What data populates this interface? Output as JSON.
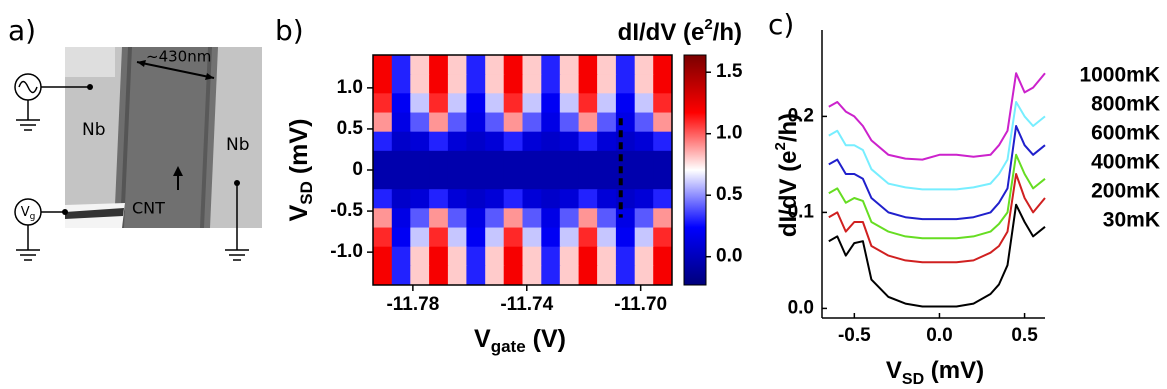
{
  "panel_a": {
    "label": "a)",
    "scale": "~430nm",
    "left_contact": "Nb",
    "right_contact": "Nb",
    "tube": "CNT",
    "gate_source": [
      "V",
      "g"
    ]
  },
  "chart_data": [
    {
      "type": "heatmap",
      "panel_label": "b)",
      "colorbar_label": [
        "dI/dV (e",
        "2",
        "/h)"
      ],
      "xlabel": [
        "V",
        "gate",
        "  (V)"
      ],
      "ylabel": [
        "V",
        "SD",
        " (mV)"
      ],
      "x": [
        -11.7907,
        -11.7841,
        -11.7776,
        -11.771,
        -11.7644,
        -11.7579,
        -11.7513,
        -11.7448,
        -11.7382,
        -11.7316,
        -11.7251,
        -11.7185,
        -11.712,
        -11.7054,
        -11.6988,
        -11.6923
      ],
      "y": [
        1.283,
        1.05,
        0.817,
        0.583,
        0.35,
        0.117,
        -0.117,
        -0.35,
        -0.583,
        -0.817,
        -1.05,
        -1.283
      ],
      "z": [
        [
          1.2,
          0.3,
          0.8,
          1.2,
          0.8,
          0.3,
          0.8,
          1.2,
          0.8,
          0.3,
          0.8,
          1.2,
          0.8,
          0.3,
          0.8,
          1.2
        ],
        [
          1.2,
          0.3,
          0.8,
          1.2,
          0.8,
          0.3,
          0.8,
          1.2,
          0.8,
          0.3,
          0.8,
          1.2,
          0.8,
          0.3,
          0.8,
          1.2
        ],
        [
          1.1,
          0.2,
          0.6,
          1.1,
          0.6,
          0.2,
          0.6,
          1.1,
          0.6,
          0.2,
          0.6,
          1.1,
          0.6,
          0.2,
          0.6,
          1.1
        ],
        [
          0.9,
          0.15,
          0.4,
          0.9,
          0.4,
          0.15,
          0.4,
          0.9,
          0.4,
          0.15,
          0.4,
          0.9,
          0.4,
          0.15,
          0.4,
          0.9
        ],
        [
          0.3,
          0.05,
          0.1,
          0.3,
          0.1,
          0.05,
          0.1,
          0.3,
          0.1,
          0.05,
          0.1,
          0.3,
          0.1,
          0.05,
          0.1,
          0.3
        ],
        [
          -0.05,
          -0.05,
          -0.05,
          -0.05,
          -0.05,
          -0.05,
          -0.05,
          -0.05,
          -0.05,
          -0.05,
          -0.05,
          -0.05,
          -0.05,
          -0.05,
          -0.05,
          -0.05
        ],
        [
          -0.05,
          -0.05,
          -0.05,
          -0.05,
          -0.05,
          -0.05,
          -0.05,
          -0.05,
          -0.05,
          -0.05,
          -0.05,
          -0.05,
          -0.05,
          -0.05,
          -0.05,
          -0.05
        ],
        [
          0.3,
          0.05,
          0.1,
          0.3,
          0.1,
          0.05,
          0.1,
          0.3,
          0.1,
          0.05,
          0.1,
          0.3,
          0.1,
          0.05,
          0.1,
          0.3
        ],
        [
          0.9,
          0.15,
          0.4,
          0.9,
          0.4,
          0.15,
          0.4,
          0.9,
          0.4,
          0.15,
          0.4,
          0.9,
          0.4,
          0.15,
          0.4,
          0.9
        ],
        [
          1.1,
          0.2,
          0.6,
          1.1,
          0.6,
          0.2,
          0.6,
          1.1,
          0.6,
          0.2,
          0.6,
          1.1,
          0.6,
          0.2,
          0.6,
          1.1
        ],
        [
          1.2,
          0.3,
          0.8,
          1.2,
          0.8,
          0.3,
          0.8,
          1.2,
          0.8,
          0.3,
          0.8,
          1.2,
          0.8,
          0.3,
          0.8,
          1.2
        ],
        [
          1.2,
          0.3,
          0.8,
          1.2,
          0.8,
          0.3,
          0.8,
          1.2,
          0.8,
          0.3,
          0.8,
          1.2,
          0.8,
          0.3,
          0.8,
          1.2
        ]
      ],
      "xlim": [
        -11.794,
        -11.689
      ],
      "ylim": [
        -1.4,
        1.4
      ],
      "xticks": [
        {
          "value": -11.78,
          "label": "-11.78"
        },
        {
          "value": -11.74,
          "label": "-11.74"
        },
        {
          "value": -11.7,
          "label": "-11.70"
        }
      ],
      "yticks": [
        {
          "value": 1.0,
          "label": "1.0"
        },
        0.5,
        0,
        -0.5,
        {
          "value": -1.0,
          "label": "-1.0"
        }
      ],
      "clim": [
        -0.23,
        1.64
      ],
      "cticks": [
        {
          "value": 0.0,
          "label": "0.0"
        },
        0.5,
        {
          "value": 1.0,
          "label": "1.0"
        },
        1.5
      ],
      "colormap": [
        "#00007a",
        "#0000ff",
        "#ffffff",
        "#ff0000",
        "#7a0000"
      ],
      "marker_line": {
        "x": -11.707,
        "y": [
          0.63,
          -0.58
        ]
      }
    },
    {
      "type": "line",
      "panel_label": "c)",
      "xlabel": [
        "V",
        "SD",
        " (mV)"
      ],
      "ylabel": [
        "dI/dV (e",
        "2",
        "/h)"
      ],
      "x": [
        -0.65,
        -0.6,
        -0.55,
        -0.5,
        -0.45,
        -0.4,
        -0.3,
        -0.2,
        -0.1,
        0,
        0.1,
        0.2,
        0.3,
        0.35,
        0.4,
        0.45,
        0.5,
        0.55,
        0.62
      ],
      "series": [
        {
          "name": "1000mK",
          "color": "#cc22cc",
          "values": [
            0.21,
            0.215,
            0.205,
            0.2,
            0.19,
            0.175,
            0.16,
            0.156,
            0.155,
            0.16,
            0.16,
            0.158,
            0.16,
            0.17,
            0.185,
            0.245,
            0.225,
            0.23,
            0.245
          ]
        },
        {
          "name": "800mK",
          "color": "#77eeff",
          "values": [
            0.18,
            0.185,
            0.17,
            0.17,
            0.165,
            0.145,
            0.13,
            0.126,
            0.124,
            0.124,
            0.124,
            0.126,
            0.13,
            0.14,
            0.155,
            0.215,
            0.2,
            0.19,
            0.2
          ]
        },
        {
          "name": "600mK",
          "color": "#2020cc",
          "values": [
            0.15,
            0.155,
            0.14,
            0.14,
            0.135,
            0.115,
            0.1,
            0.095,
            0.093,
            0.093,
            0.093,
            0.095,
            0.1,
            0.11,
            0.125,
            0.19,
            0.17,
            0.16,
            0.17
          ]
        },
        {
          "name": "400mK",
          "color": "#66dd22",
          "values": [
            0.12,
            0.125,
            0.11,
            0.115,
            0.112,
            0.09,
            0.08,
            0.075,
            0.073,
            0.073,
            0.073,
            0.075,
            0.08,
            0.088,
            0.1,
            0.16,
            0.14,
            0.125,
            0.135
          ]
        },
        {
          "name": "200mK",
          "color": "#d02020",
          "values": [
            0.095,
            0.1,
            0.08,
            0.09,
            0.09,
            0.065,
            0.055,
            0.05,
            0.048,
            0.048,
            0.048,
            0.05,
            0.058,
            0.065,
            0.08,
            0.14,
            0.115,
            0.1,
            0.115
          ]
        },
        {
          "name": "30mK",
          "color": "#000000",
          "values": [
            0.07,
            0.075,
            0.055,
            0.068,
            0.07,
            0.03,
            0.012,
            0.005,
            0.002,
            0.002,
            0.002,
            0.005,
            0.015,
            0.025,
            0.045,
            0.108,
            0.09,
            0.075,
            0.085
          ]
        }
      ],
      "xlim": [
        -0.69,
        0.62
      ],
      "ylim": [
        -0.01,
        0.29
      ],
      "xticks": [
        -0.5,
        {
          "value": 0.0,
          "label": "0.0"
        },
        0.5
      ],
      "yticks": [
        {
          "value": 0.0,
          "label": "0.0"
        },
        0.1,
        0.2
      ]
    }
  ]
}
